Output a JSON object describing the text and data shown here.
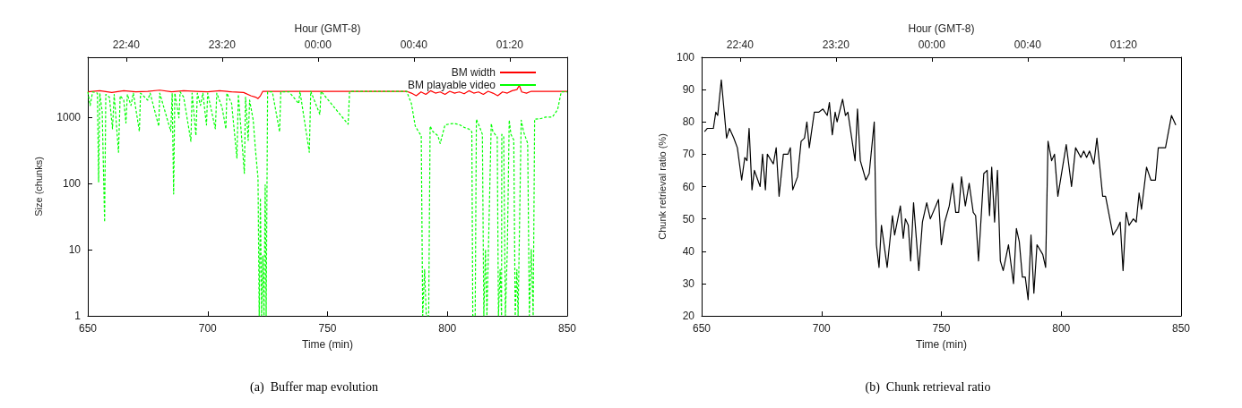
{
  "chart_data": [
    {
      "type": "line",
      "title": "(a)  Buffer map evolution",
      "xlabel": "Time (min)",
      "ylabel": "Size (chunks)",
      "x2label": "Hour (GMT-8)",
      "xlim": [
        650,
        850
      ],
      "xticks": [
        650,
        700,
        750,
        800,
        850
      ],
      "ylim": [
        1,
        8000
      ],
      "yticks": [
        1,
        10,
        100,
        1000
      ],
      "log": "y",
      "x2lim": [
        "--01-01T22:24",
        "--01-02T01:44"
      ],
      "x2ticks": [
        {
          "value": "--01-01T22:40",
          "label": "22:40"
        },
        {
          "value": "--01-01T23:20",
          "label": "23:20"
        },
        {
          "value": "--01-02T00:00",
          "label": "00:00"
        },
        {
          "value": "--01-02T00:40",
          "label": "00:40"
        },
        {
          "value": "--01-02T01:20",
          "label": "01:20"
        }
      ],
      "grid": false,
      "legend": "top right",
      "marker": "none",
      "series": [
        {
          "name": "BM width",
          "color": "#ff0000",
          "line_style": "solid",
          "x": [
            650,
            655,
            660,
            665,
            670,
            675,
            680,
            685,
            690,
            695,
            700,
            705,
            710,
            715,
            718,
            720,
            721,
            722,
            723,
            725,
            735,
            745,
            755,
            765,
            775,
            783,
            785,
            787,
            789,
            791,
            793,
            795,
            797,
            799,
            801,
            803,
            805,
            807,
            809,
            811,
            813,
            815,
            817,
            819,
            821,
            823,
            825,
            827,
            829,
            830,
            831,
            833,
            835,
            840,
            845,
            850
          ],
          "values": [
            2400,
            2500,
            2350,
            2500,
            2400,
            2450,
            2550,
            2400,
            2500,
            2450,
            2400,
            2500,
            2400,
            2350,
            2100,
            2000,
            1900,
            2100,
            2450,
            2450,
            2450,
            2450,
            2450,
            2450,
            2450,
            2450,
            2300,
            2100,
            2400,
            2200,
            2500,
            2300,
            2400,
            2200,
            2450,
            2300,
            2400,
            2250,
            2500,
            2300,
            2400,
            2200,
            2450,
            2300,
            2100,
            2400,
            2300,
            2500,
            2600,
            3000,
            2400,
            2300,
            2450,
            2450,
            2450,
            2450
          ]
        },
        {
          "name": "BM playable video",
          "color": "#00ff00",
          "line_style": "dashed",
          "x": [
            650,
            651,
            652,
            654,
            654.5,
            655,
            656,
            657,
            657.5,
            659,
            660.3,
            661,
            662.8,
            663.5,
            665,
            665.9,
            666.5,
            668,
            669,
            671.5,
            672,
            675,
            676,
            679.6,
            680,
            684.6,
            685.2,
            685.8,
            686.3,
            688,
            688.5,
            690,
            693,
            693.5,
            695.1,
            695.7,
            697,
            698,
            699.5,
            700,
            703.2,
            703.8,
            706,
            707.6,
            708,
            710,
            712.2,
            712.8,
            715.3,
            715.8,
            716.9,
            717.5,
            719,
            720,
            721,
            721.5,
            722,
            722.5,
            723,
            723.5,
            724,
            724.4,
            725,
            727,
            730,
            730.5,
            734,
            738,
            738.5,
            742.4,
            743,
            746.8,
            747.3,
            758.6,
            759.2,
            783,
            785,
            786.6,
            788,
            789.1,
            789.7,
            790.5,
            791.2,
            792.2,
            792.8,
            794,
            796,
            797,
            799,
            801,
            803,
            805.3,
            807,
            809,
            810.2,
            810.6,
            811.6,
            812.1,
            813.5,
            814.6,
            815.2,
            815.9,
            816.5,
            818.3,
            819,
            820.8,
            821.3,
            822,
            822.6,
            822.7,
            823.5,
            824.2,
            825,
            825.8,
            826.5,
            827.7,
            828.3,
            829,
            829.5,
            830.8,
            831.8,
            833.5,
            834.2,
            835,
            835.8,
            836.4,
            839,
            841,
            843.8,
            846,
            847.5,
            850
          ],
          "values": [
            2400,
            1500,
            2400,
            2300,
            105,
            2300,
            1200,
            26,
            2200,
            2000,
            665,
            2200,
            294,
            2100,
            1800,
            815,
            2200,
            1500,
            2300,
            610,
            2300,
            1800,
            2300,
            725,
            2300,
            610,
            2300,
            69,
            2300,
            975,
            2400,
            2000,
            430,
            2300,
            525,
            2300,
            1500,
            2300,
            760,
            2300,
            665,
            2300,
            1400,
            665,
            2300,
            1600,
            240,
            2200,
            142,
            2000,
            445,
            1800,
            900,
            302,
            120,
            1,
            60,
            1,
            8,
            1,
            95,
            1,
            2400,
            2400,
            600,
            2400,
            2400,
            1600,
            2450,
            294,
            2450,
            1100,
            2450,
            780,
            2450,
            2450,
            1600,
            730,
            600,
            525,
            1,
            5,
            1,
            1,
            730,
            600,
            525,
            400,
            760,
            790,
            800,
            760,
            700,
            660,
            600,
            1,
            1,
            930,
            700,
            550,
            1,
            10,
            1,
            800,
            600,
            500,
            1,
            5,
            1,
            550,
            500,
            1,
            10,
            900,
            550,
            450,
            1,
            5,
            1,
            900,
            600,
            400,
            1,
            10,
            1,
            930,
            950,
            1000,
            1000,
            1300,
            2400,
            2400
          ]
        }
      ]
    },
    {
      "type": "line",
      "title": "(b)  Chunk retrieval ratio",
      "xlabel": "Time (min)",
      "ylabel": "Chunk retrieval ratio (%)",
      "x2label": "Hour (GMT-8)",
      "xlim": [
        650,
        850
      ],
      "xticks": [
        650,
        700,
        750,
        800,
        850
      ],
      "ylim": [
        20,
        100
      ],
      "yticks": [
        20,
        30,
        40,
        50,
        60,
        70,
        80,
        90,
        100
      ],
      "x2lim": [
        "--01-01T22:24",
        "--01-02T01:44"
      ],
      "x2ticks": [
        {
          "value": "--01-01T22:40",
          "label": "22:40"
        },
        {
          "value": "--01-01T23:20",
          "label": "23:20"
        },
        {
          "value": "--01-02T00:00",
          "label": "00:00"
        },
        {
          "value": "--01-02T00:40",
          "label": "00:40"
        },
        {
          "value": "--01-02T01:20",
          "label": "01:20"
        }
      ],
      "grid": false,
      "legend": false,
      "marker": "none",
      "series": [
        {
          "color": "#000000",
          "line_style": "solid",
          "x": [
            651.2,
            652.4,
            653.7,
            654.9,
            655.9,
            656.7,
            658.2,
            660.4,
            661.6,
            663.4,
            664.9,
            666.7,
            668,
            668.9,
            669.8,
            671,
            672,
            674.4,
            675.4,
            676.6,
            677.4,
            679.9,
            681.1,
            682.3,
            684.1,
            686,
            687,
            688,
            690,
            691.5,
            692.9,
            693.9,
            694.9,
            697,
            698.8,
            700.6,
            702.4,
            703.3,
            704.5,
            705.7,
            706.5,
            708.8,
            710,
            711,
            714,
            715,
            716.2,
            718.5,
            719.9,
            722,
            722.9,
            724,
            725,
            727.4,
            729.6,
            730.5,
            732.9,
            734.1,
            735,
            736.2,
            737.2,
            738.4,
            740.6,
            742.1,
            743.9,
            745.4,
            748.8,
            750,
            751.4,
            753.3,
            754.7,
            756,
            757.2,
            758.4,
            760,
            761.6,
            763.3,
            764.3,
            765.5,
            767.7,
            769.1,
            770.1,
            771,
            772.2,
            773.4,
            774.6,
            775.8,
            778,
            780.1,
            781.3,
            782.5,
            783.8,
            785,
            786.2,
            787.4,
            788.6,
            789.9,
            792.3,
            793.5,
            794.5,
            796,
            797.2,
            798.6,
            802.1,
            804.3,
            806,
            808.2,
            809.4,
            810.6,
            811.8,
            813.6,
            814.9,
            817.3,
            818.5,
            821.6,
            823.4,
            824.6,
            825.8,
            827.1,
            828.3,
            830.1,
            831.3,
            832.5,
            833.5,
            835.6,
            837.4,
            839.3,
            840.5,
            843.5,
            846,
            846.6,
            847.8
          ],
          "values": [
            77,
            78,
            78,
            78,
            83,
            82,
            93,
            75,
            78,
            75,
            72,
            62,
            69,
            68,
            78,
            59,
            65,
            60,
            70,
            59,
            70,
            67,
            72,
            57,
            70,
            70,
            72,
            59,
            63,
            74,
            75,
            80,
            72,
            83,
            83,
            84,
            82,
            86,
            76,
            83,
            80,
            87,
            82,
            83,
            68,
            84,
            68,
            62,
            64,
            80,
            42,
            35,
            48,
            35,
            51,
            45,
            54,
            44,
            50,
            48,
            37,
            55,
            34,
            49,
            55,
            50,
            56,
            42,
            49,
            54,
            61,
            52,
            52,
            63,
            54,
            61,
            52,
            51,
            37,
            64,
            65,
            51,
            66,
            49,
            65,
            37,
            34,
            42,
            30,
            47,
            43,
            32,
            32,
            25,
            45,
            27,
            42,
            39,
            35,
            74,
            68,
            70,
            57,
            73,
            60,
            72,
            69,
            71,
            69,
            71,
            67,
            75,
            57,
            57,
            45,
            47,
            49,
            34,
            52,
            48,
            50,
            49,
            58,
            53,
            66,
            62,
            62,
            72,
            72,
            82,
            81,
            79
          ]
        }
      ]
    }
  ]
}
